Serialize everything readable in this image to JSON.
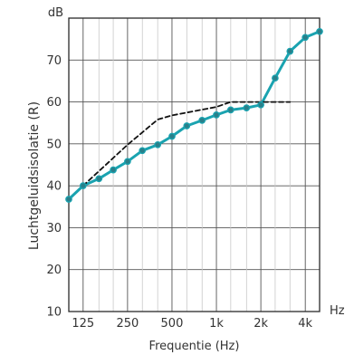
{
  "chart_data": {
    "type": "line",
    "title": "",
    "xlabel": "Frequentie (Hz)",
    "ylabel": "Luchtgeluidsisolatie (R)",
    "y_unit_label": "dB",
    "x_unit_label": "Hz",
    "x_scale": "log",
    "xlim": [
      100,
      5000
    ],
    "ylim": [
      10,
      80
    ],
    "grid": true,
    "x_ticks": [
      {
        "value": 125,
        "label": "125"
      },
      {
        "value": 250,
        "label": "250"
      },
      {
        "value": 500,
        "label": "500"
      },
      {
        "value": 1000,
        "label": "1k"
      },
      {
        "value": 2000,
        "label": "2k"
      },
      {
        "value": 4000,
        "label": "4k"
      }
    ],
    "x_grid_minor": [
      160,
      200,
      315,
      400,
      630,
      800,
      1250,
      1600,
      2500,
      3150
    ],
    "y_ticks": [
      10,
      20,
      30,
      40,
      50,
      60,
      70
    ],
    "series": [
      {
        "style": "solid",
        "color": "#1aa3b0",
        "marker_color": "#2a7f89",
        "markers": true,
        "points": [
          [
            100,
            36.8
          ],
          [
            125,
            40.0
          ],
          [
            160,
            41.7
          ],
          [
            200,
            43.8
          ],
          [
            250,
            45.8
          ],
          [
            315,
            48.4
          ],
          [
            400,
            49.8
          ],
          [
            500,
            51.8
          ],
          [
            630,
            54.3
          ],
          [
            800,
            55.6
          ],
          [
            1000,
            56.9
          ],
          [
            1250,
            58.1
          ],
          [
            1600,
            58.6
          ],
          [
            2000,
            59.3
          ],
          [
            2500,
            65.7
          ],
          [
            3150,
            72.1
          ],
          [
            4000,
            75.4
          ],
          [
            5000,
            76.8
          ]
        ]
      },
      {
        "style": "dashed",
        "color": "#111111",
        "markers": false,
        "points": [
          [
            125,
            40.0
          ],
          [
            250,
            49.8
          ],
          [
            400,
            55.8
          ],
          [
            500,
            56.8
          ],
          [
            1000,
            58.8
          ],
          [
            1250,
            60.0
          ],
          [
            3150,
            60.0
          ]
        ]
      }
    ]
  }
}
